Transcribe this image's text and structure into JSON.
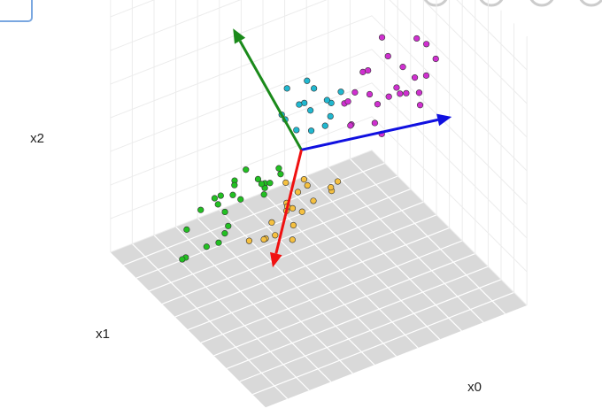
{
  "chart_data": {
    "type": "scatter3d",
    "axis_labels": {
      "x": "x0",
      "y": "x1",
      "z": "x2"
    },
    "series": [
      {
        "color": "#22c022",
        "x": [
          -1.2,
          -1.8,
          -0.9,
          -1.5,
          -2.1,
          -0.7,
          -1.0,
          -1.6,
          -2.4,
          -0.5,
          -1.3,
          -1.9,
          -0.8,
          -1.1,
          -2.0,
          -1.4,
          -0.6,
          -1.7,
          -2.6,
          -1.0,
          -1.2,
          -0.9,
          -1.5,
          -2.2,
          -0.4
        ],
        "y": [
          1.0,
          0.6,
          1.3,
          1.5,
          0.8,
          0.9,
          0.4,
          1.2,
          1.1,
          0.7,
          1.6,
          0.3,
          1.0,
          1.4,
          0.5,
          0.9,
          1.2,
          1.7,
          0.9,
          0.2,
          1.3,
          0.6,
          1.1,
          1.4,
          0.8
        ],
        "z": [
          -0.8,
          -1.2,
          -0.3,
          -1.0,
          -1.6,
          -0.5,
          -0.1,
          -0.9,
          -2.0,
          0.0,
          -1.1,
          -0.7,
          -0.4,
          -0.6,
          -1.3,
          -0.2,
          -0.8,
          -1.4,
          -1.8,
          0.2,
          -0.9,
          -0.5,
          -1.1,
          -1.5,
          -0.3
        ]
      },
      {
        "color": "#f5c040",
        "x": [
          -0.6,
          -0.9,
          -0.3,
          -1.1,
          0.0,
          -0.5,
          -0.8,
          -0.2,
          -1.3,
          0.2,
          -0.7,
          -0.4,
          -1.0,
          0.1,
          -0.6,
          -0.9,
          -0.3,
          -1.2,
          -0.1,
          -0.5
        ],
        "y": [
          0.0,
          0.3,
          -0.3,
          0.2,
          -0.5,
          0.4,
          -0.1,
          0.1,
          0.5,
          -0.4,
          -0.2,
          0.6,
          0.0,
          -0.3,
          0.2,
          -0.5,
          0.3,
          0.1,
          0.4,
          -0.2
        ],
        "z": [
          -0.6,
          -1.1,
          -0.3,
          -1.4,
          0.0,
          -0.8,
          -0.5,
          -0.2,
          -1.6,
          0.1,
          -0.9,
          -0.4,
          -1.2,
          -0.1,
          -0.7,
          -1.0,
          -0.5,
          -1.3,
          -0.3,
          -0.6
        ]
      },
      {
        "color": "#20b8d0",
        "x": [
          0.7,
          0.3,
          1.0,
          0.5,
          1.2,
          0.1,
          0.8,
          0.4,
          1.4,
          0.6,
          0.9,
          0.2,
          1.1,
          0.5,
          0.8
        ],
        "y": [
          1.5,
          1.8,
          1.2,
          1.4,
          1.7,
          1.6,
          1.1,
          1.9,
          1.5,
          1.3,
          1.7,
          1.2,
          1.4,
          1.6,
          1.8
        ],
        "z": [
          0.5,
          0.2,
          0.8,
          0.9,
          0.4,
          0.6,
          0.3,
          1.0,
          0.7,
          0.1,
          0.9,
          0.4,
          0.2,
          0.7,
          1.1
        ]
      },
      {
        "color": "#d030d0",
        "x": [
          2.5,
          2.0,
          3.0,
          1.7,
          2.8,
          3.3,
          2.2,
          1.5,
          2.6,
          3.6,
          2.1,
          2.9,
          1.9,
          2.4,
          3.1,
          1.6,
          2.7,
          3.4,
          2.3,
          2.0,
          2.9,
          1.8,
          3.2,
          2.5,
          2.2
        ],
        "y": [
          1.5,
          1.2,
          1.8,
          1.6,
          1.0,
          1.4,
          2.0,
          1.3,
          1.7,
          1.9,
          1.1,
          1.5,
          1.8,
          0.9,
          1.3,
          1.7,
          2.1,
          1.2,
          1.6,
          1.4,
          1.0,
          1.9,
          1.6,
          1.2,
          1.8
        ],
        "z": [
          0.0,
          -0.3,
          0.4,
          -0.5,
          0.8,
          0.3,
          0.5,
          -0.2,
          1.0,
          0.7,
          -0.6,
          -0.1,
          0.2,
          0.6,
          -0.4,
          0.1,
          1.2,
          0.9,
          -0.2,
          0.4,
          0.3,
          -0.1,
          1.3,
          0.5,
          0.7
        ]
      }
    ],
    "vectors": [
      {
        "color": "#1a8a1a",
        "start": [
          -0.1,
          0.5,
          0.5
        ],
        "end": [
          -1.67,
          0.5,
          4.9
        ]
      },
      {
        "color": "#1010e0",
        "start": [
          -0.1,
          0.5,
          0.5
        ],
        "end": [
          3.35,
          0.5,
          -0.26
        ]
      },
      {
        "color": "#f01010",
        "start": [
          -0.1,
          0.5,
          0.5
        ],
        "end": [
          -0.76,
          0.5,
          -2.66
        ]
      }
    ]
  }
}
